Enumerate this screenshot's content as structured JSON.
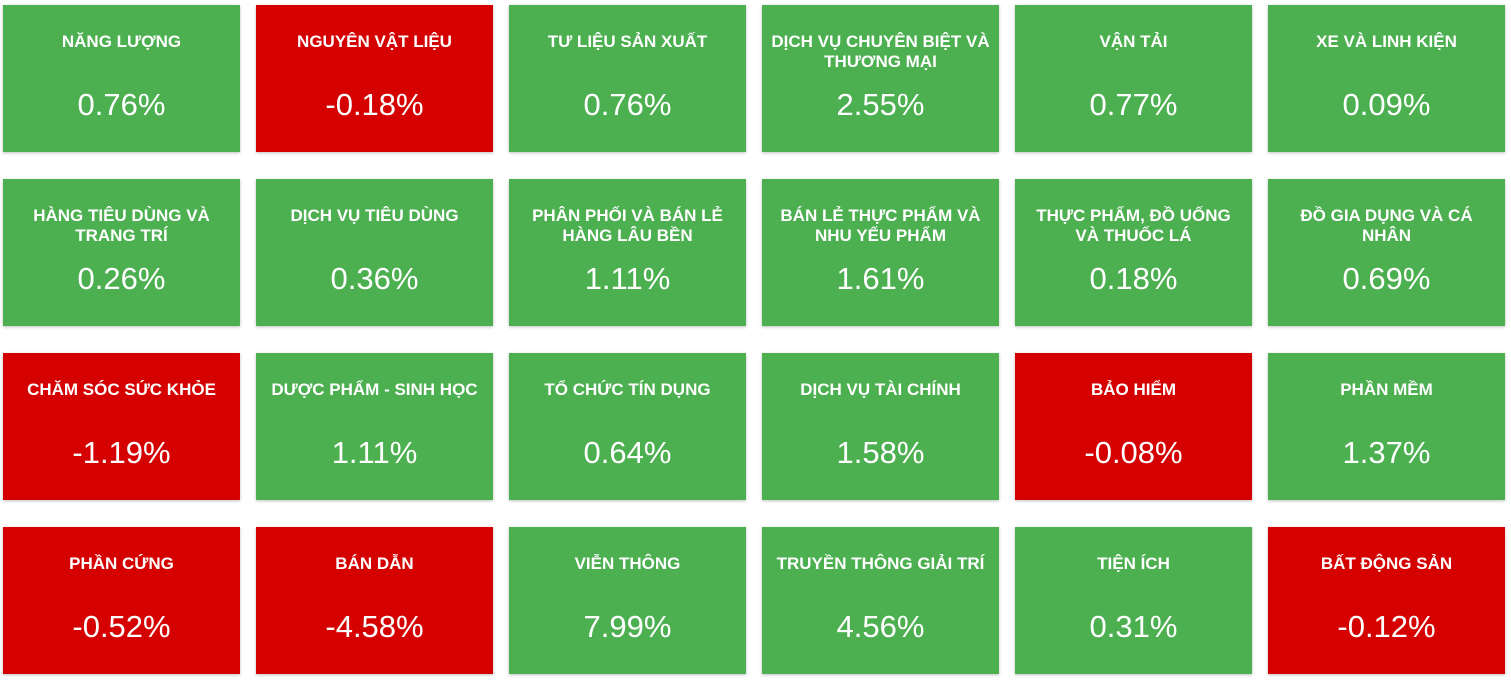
{
  "colors": {
    "positive": "#4caf50",
    "negative": "#d50000",
    "text": "#ffffff"
  },
  "sectors": [
    {
      "name": "NĂNG LƯỢNG",
      "change": "0.76%",
      "trend": "up"
    },
    {
      "name": "NGUYÊN VẬT LIỆU",
      "change": "-0.18%",
      "trend": "down"
    },
    {
      "name": "TƯ LIỆU SẢN XUẤT",
      "change": "0.76%",
      "trend": "up"
    },
    {
      "name": "DỊCH VỤ CHUYÊN BIỆT VÀ THƯƠNG MẠI",
      "change": "2.55%",
      "trend": "up"
    },
    {
      "name": "VẬN TẢI",
      "change": "0.77%",
      "trend": "up"
    },
    {
      "name": "XE VÀ LINH KIỆN",
      "change": "0.09%",
      "trend": "up"
    },
    {
      "name": "HÀNG TIÊU DÙNG VÀ TRANG TRÍ",
      "change": "0.26%",
      "trend": "up"
    },
    {
      "name": "DỊCH VỤ TIÊU DÙNG",
      "change": "0.36%",
      "trend": "up"
    },
    {
      "name": "PHÂN PHỐI VÀ BÁN LẺ HÀNG LÂU BỀN",
      "change": "1.11%",
      "trend": "up"
    },
    {
      "name": "BÁN LẺ THỰC PHẨM VÀ NHU YẾU PHẨM",
      "change": "1.61%",
      "trend": "up"
    },
    {
      "name": "THỰC PHẨM, ĐỒ UỐNG VÀ THUỐC LÁ",
      "change": "0.18%",
      "trend": "up"
    },
    {
      "name": "ĐỒ GIA DỤNG VÀ CÁ NHÂN",
      "change": "0.69%",
      "trend": "up"
    },
    {
      "name": "CHĂM SÓC SỨC KHỎE",
      "change": "-1.19%",
      "trend": "down"
    },
    {
      "name": "DƯỢC PHẨM - SINH HỌC",
      "change": "1.11%",
      "trend": "up"
    },
    {
      "name": "TỔ CHỨC TÍN DỤNG",
      "change": "0.64%",
      "trend": "up"
    },
    {
      "name": "DỊCH VỤ TÀI CHÍNH",
      "change": "1.58%",
      "trend": "up"
    },
    {
      "name": "BẢO HIỂM",
      "change": "-0.08%",
      "trend": "down"
    },
    {
      "name": "PHẦN MỀM",
      "change": "1.37%",
      "trend": "up"
    },
    {
      "name": "PHẦN CỨNG",
      "change": "-0.52%",
      "trend": "down"
    },
    {
      "name": "BÁN DẪN",
      "change": "-4.58%",
      "trend": "down"
    },
    {
      "name": "VIỄN THÔNG",
      "change": "7.99%",
      "trend": "up"
    },
    {
      "name": "TRUYỀN THÔNG GIẢI TRÍ",
      "change": "4.56%",
      "trend": "up"
    },
    {
      "name": "TIỆN ÍCH",
      "change": "0.31%",
      "trend": "up"
    },
    {
      "name": "BẤT ĐỘNG SẢN",
      "change": "-0.12%",
      "trend": "down"
    }
  ]
}
